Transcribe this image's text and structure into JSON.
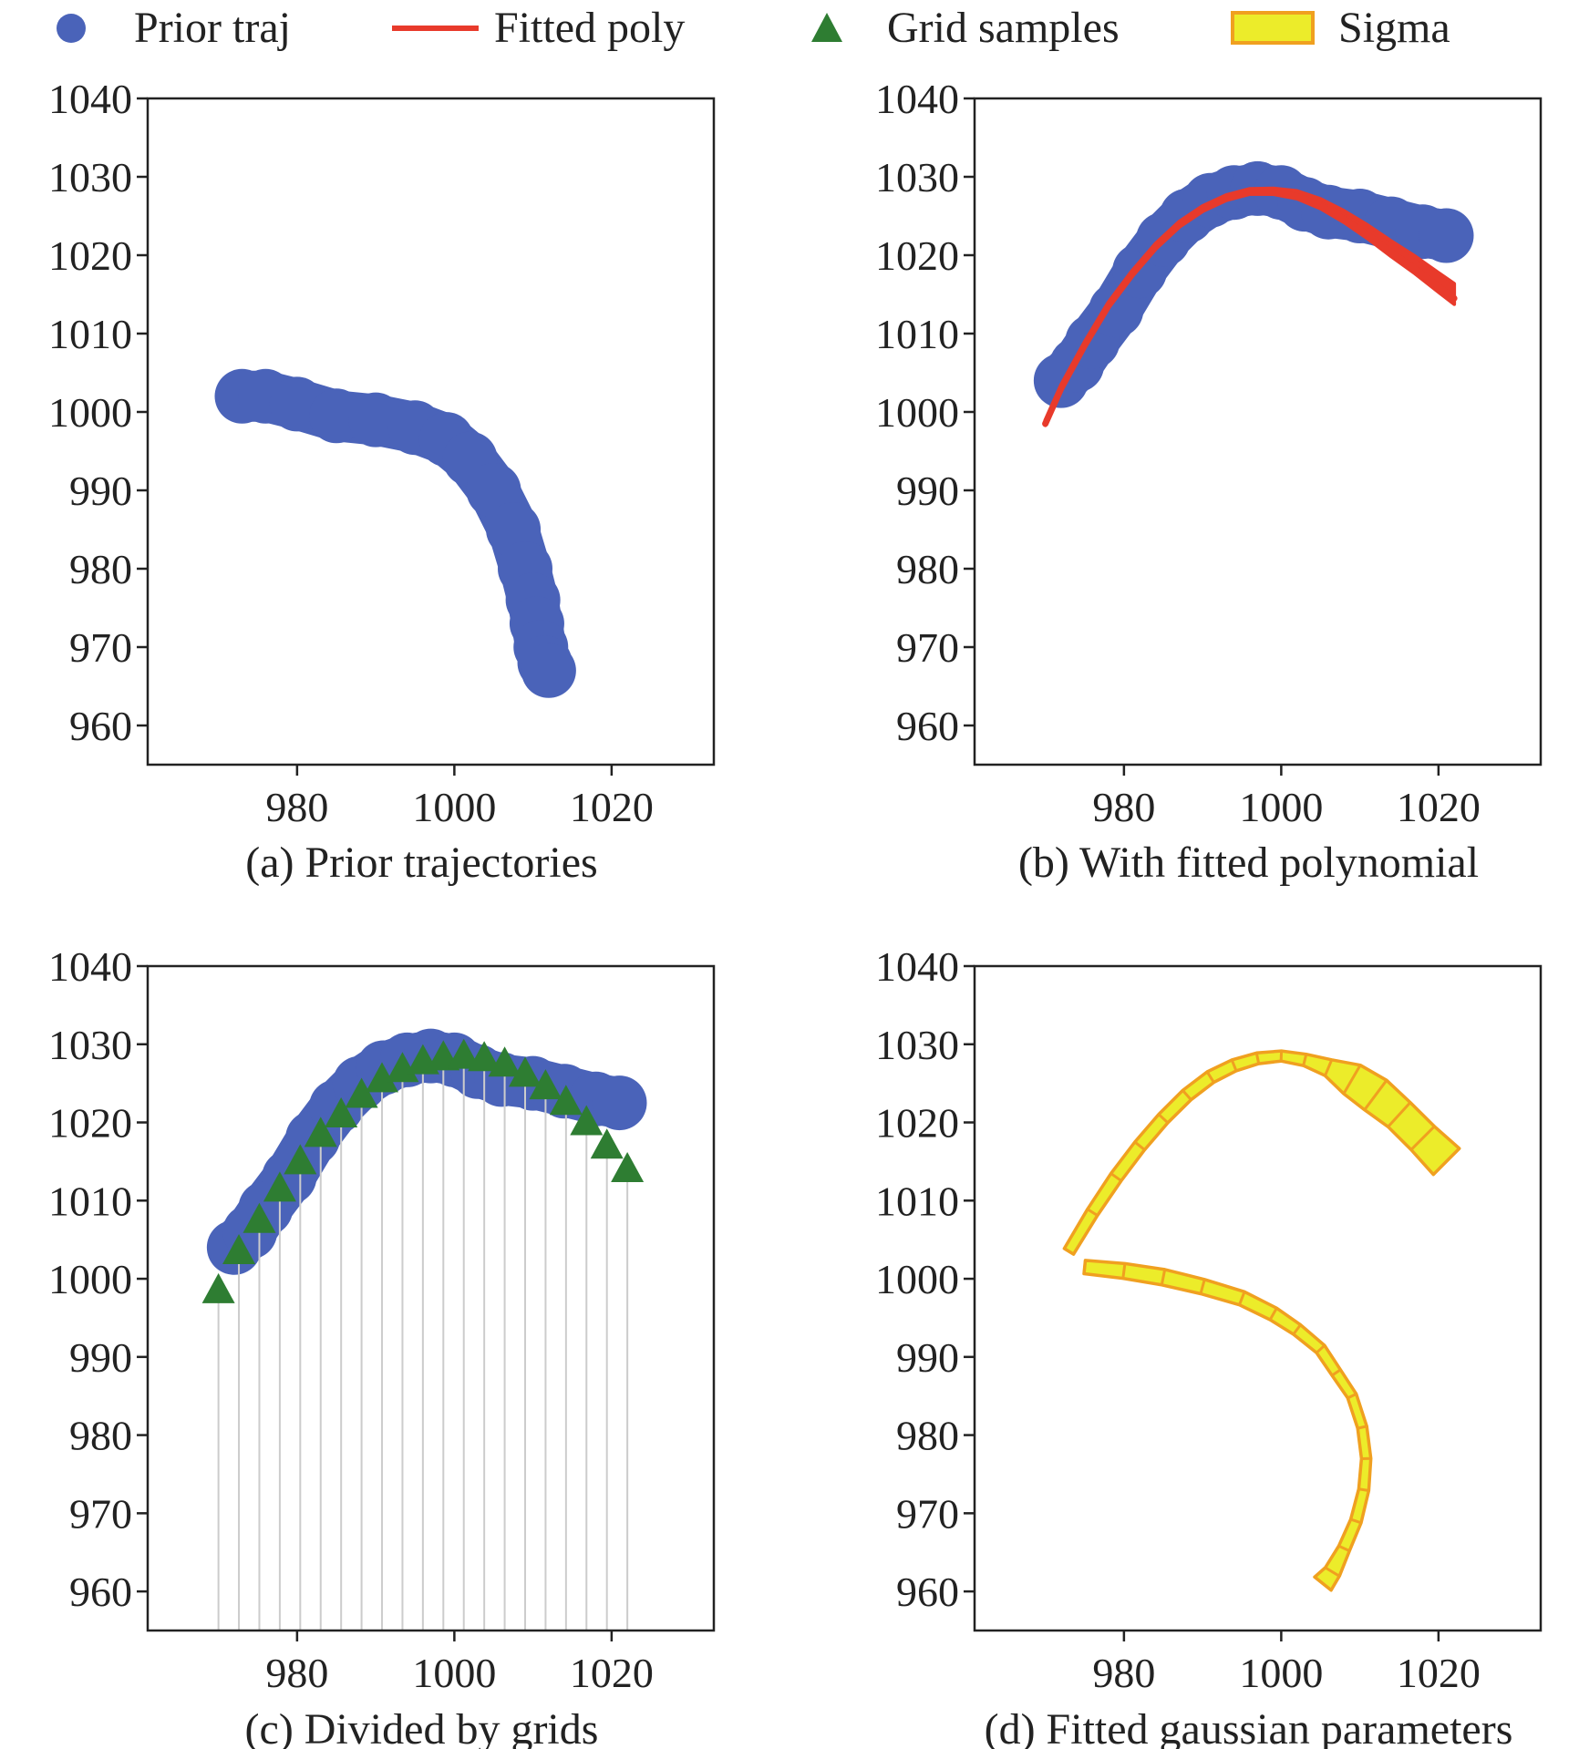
{
  "legend": {
    "prior": "Prior traj",
    "fitted": "Fitted poly",
    "grid": "Grid samples",
    "sigma": "Sigma"
  },
  "colors": {
    "prior": "#4a63b9",
    "fitted": "#e83a2b",
    "grid": "#2e7d32",
    "sigma_fill": "#ecec2a",
    "sigma_edge": "#f0a020",
    "grid_line": "#cccccc"
  },
  "chart_data": [
    {
      "type": "scatter",
      "caption": "(a) Prior trajectories",
      "xlim": [
        961,
        1033
      ],
      "ylim": [
        955,
        1040
      ],
      "xticks": [
        980,
        1000,
        1020
      ],
      "yticks": [
        960,
        970,
        980,
        990,
        1000,
        1010,
        1020,
        1030,
        1040
      ],
      "series": [
        {
          "kind": "prior",
          "x": [
            973,
            976,
            980,
            985,
            990,
            995,
            999,
            1002,
            1005,
            1007.5,
            1009,
            1010,
            1010.5,
            1011,
            1011.5,
            1012
          ],
          "y": [
            1002,
            1002,
            1001,
            999.5,
            999,
            998,
            996.5,
            994,
            990,
            985,
            980,
            976,
            973,
            970,
            968,
            967
          ]
        }
      ]
    },
    {
      "type": "line",
      "caption": "(b) With fitted polynomial",
      "xlim": [
        961,
        1033
      ],
      "ylim": [
        955,
        1040
      ],
      "xticks": [
        980,
        1000,
        1020
      ],
      "yticks": [
        960,
        970,
        980,
        990,
        1000,
        1010,
        1020,
        1030,
        1040
      ],
      "series": [
        {
          "kind": "prior",
          "x": [
            972,
            974,
            976,
            979,
            982,
            985,
            988,
            991,
            994,
            997,
            1000,
            1003,
            1006,
            1010,
            1014,
            1018,
            1021
          ],
          "y": [
            1004,
            1006,
            1009,
            1013,
            1018,
            1022,
            1025,
            1027,
            1028,
            1028.5,
            1028,
            1026.5,
            1025.5,
            1025,
            1024,
            1023,
            1022.5
          ]
        },
        {
          "kind": "fitted",
          "x": [
            970,
            972,
            975,
            978,
            981,
            984,
            987,
            990,
            993,
            996,
            999,
            1002,
            1005,
            1008,
            1011,
            1014,
            1017,
            1020,
            1022
          ],
          "y": [
            998.5,
            1003,
            1008.5,
            1013.5,
            1017.5,
            1021,
            1023.8,
            1025.8,
            1027.2,
            1028,
            1028,
            1027.5,
            1026.3,
            1024.6,
            1022.6,
            1020.4,
            1018.3,
            1016,
            1014.5
          ]
        }
      ]
    },
    {
      "type": "scatter",
      "caption": "(c) Divided by grids",
      "xlim": [
        961,
        1033
      ],
      "ylim": [
        955,
        1040
      ],
      "xticks": [
        980,
        1000,
        1020
      ],
      "yticks": [
        960,
        970,
        980,
        990,
        1000,
        1010,
        1020,
        1030,
        1040
      ],
      "series": [
        {
          "kind": "prior",
          "x": [
            972,
            974,
            976,
            979,
            982,
            985,
            988,
            991,
            994,
            997,
            1000,
            1003,
            1006,
            1010,
            1014,
            1018,
            1021
          ],
          "y": [
            1004,
            1006,
            1009,
            1013,
            1018,
            1022,
            1025,
            1027,
            1028,
            1028.5,
            1028,
            1026.5,
            1025.5,
            1025,
            1024,
            1023,
            1022.5
          ]
        },
        {
          "kind": "grid",
          "x": [
            970,
            972.6,
            975.2,
            977.8,
            980.4,
            983,
            985.6,
            988.2,
            990.8,
            993.4,
            996,
            998.6,
            1001.2,
            1003.8,
            1006.4,
            1009,
            1011.6,
            1014.2,
            1016.8,
            1019.4,
            1022
          ],
          "y": [
            998.5,
            1003.5,
            1007.5,
            1011.5,
            1015,
            1018.5,
            1021,
            1023.5,
            1025.5,
            1026.8,
            1027.8,
            1028.3,
            1028.5,
            1028.2,
            1027.5,
            1026.2,
            1024.6,
            1022.6,
            1020,
            1017,
            1014
          ]
        }
      ]
    },
    {
      "type": "area",
      "caption": "(d) Fitted gaussian parameters",
      "xlim": [
        961,
        1033
      ],
      "ylim": [
        955,
        1040
      ],
      "xticks": [
        980,
        1000,
        1020
      ],
      "yticks": [
        960,
        970,
        980,
        990,
        1000,
        1010,
        1020,
        1030,
        1040
      ],
      "series": [
        {
          "kind": "sigma",
          "x": [
            973,
            976,
            979,
            982,
            985,
            988,
            991,
            994,
            997,
            1000,
            1003,
            1006,
            1009,
            1012,
            1015,
            1018,
            1021
          ],
          "y": [
            1003.5,
            1008.5,
            1013,
            1017,
            1020.5,
            1023.5,
            1025.8,
            1027.3,
            1028.2,
            1028.5,
            1028,
            1027,
            1025.5,
            1023.5,
            1021,
            1018,
            1015
          ],
          "sigma": [
            0.7,
            0.8,
            0.9,
            0.9,
            0.9,
            0.9,
            0.9,
            0.8,
            0.7,
            0.6,
            0.8,
            1.5,
            3.5,
            4,
            3.5,
            3.5,
            4
          ]
        },
        {
          "kind": "sigma",
          "x": [
            975,
            980,
            985,
            990,
            995,
            999,
            1002,
            1005,
            1007,
            1009,
            1010.3,
            1010.8,
            1010.5,
            1009.5,
            1008,
            1006.5,
            1005.3
          ],
          "y": [
            1001.5,
            1001,
            1000.2,
            999,
            997.5,
            995.5,
            993.5,
            991,
            988,
            985,
            981,
            977,
            973,
            969,
            965.5,
            962.5,
            961
          ],
          "sigma": [
            1,
            1.2,
            1.3,
            1.2,
            1.1,
            1,
            0.8,
            0.7,
            0.6,
            0.5,
            0.5,
            0.5,
            0.6,
            0.7,
            0.8,
            1.4,
            2
          ]
        }
      ]
    }
  ]
}
